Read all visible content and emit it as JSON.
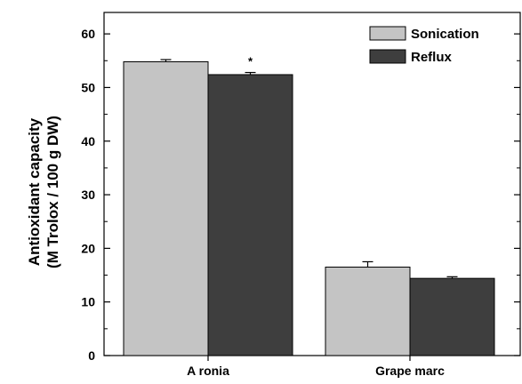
{
  "chart_data": {
    "type": "bar",
    "title": "",
    "xlabel": "",
    "ylabel_line1": "Antioxidant capacity",
    "ylabel_line2": "(M Trolox / 100 g DW)",
    "categories": [
      "A ronia",
      "Grape marc"
    ],
    "series": [
      {
        "name": "Sonication",
        "color": "#c4c4c4",
        "values": [
          54.8,
          16.5
        ],
        "errors": [
          0.4,
          1.0
        ]
      },
      {
        "name": "Reflux",
        "color": "#3e3e3e",
        "values": [
          52.4,
          14.4
        ],
        "errors": [
          0.4,
          0.3
        ]
      }
    ],
    "yticks": [
      0,
      10,
      20,
      30,
      40,
      50,
      60
    ],
    "ylim": [
      0,
      64
    ],
    "legend_placement": "top-right",
    "grid": false,
    "annotations": [
      {
        "text": "*",
        "category": 0,
        "series": 1
      }
    ]
  }
}
